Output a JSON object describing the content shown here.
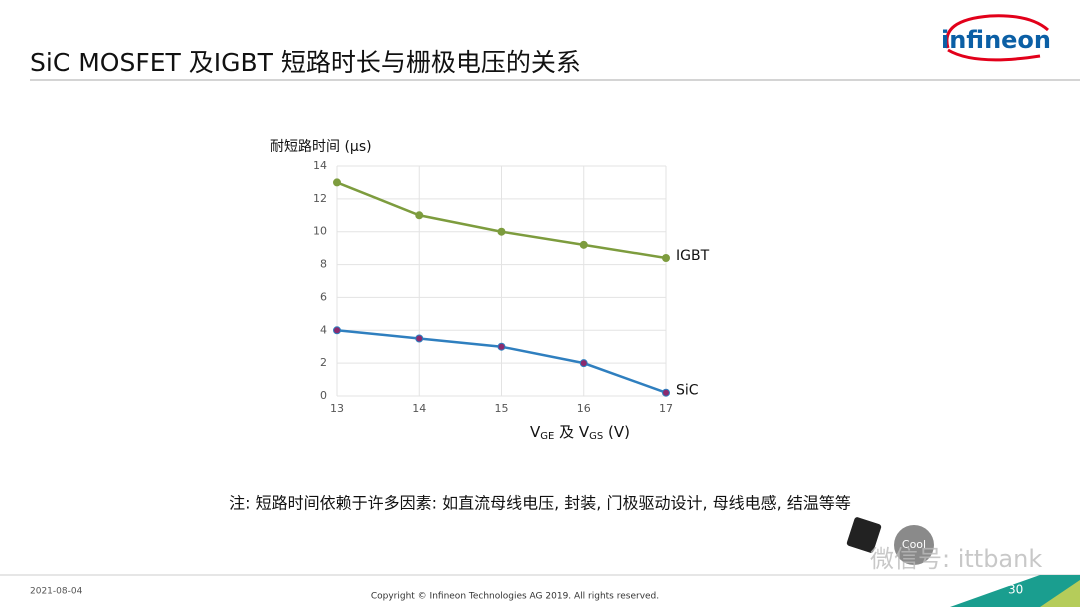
{
  "slide": {
    "title": "SiC MOSFET 及IGBT 短路时长与栅极电压的关系",
    "logo": "infineon",
    "note": "注: 短路时间依赖于许多因素: 如直流母线电压, 封装, 门极驱动设计, 母线电感, 结温等等",
    "date": "2021-08-04",
    "copyright": "Copyright © Infineon Technologies AG 2019. All rights reserved.",
    "page": "30",
    "badge": "Cool",
    "watermark": "微信号: ittbank"
  },
  "chart_data": {
    "type": "line",
    "ylabel": "耐短路时间 (µs)",
    "xlabel": [
      "V",
      "GE",
      " 及 V",
      "GS",
      "  (V)"
    ],
    "x": [
      13,
      14,
      15,
      16,
      17
    ],
    "xlim": [
      13,
      17
    ],
    "xticks": [
      13,
      14,
      15,
      16,
      17
    ],
    "ylim": [
      0,
      14
    ],
    "yticks": [
      0,
      2,
      4,
      6,
      8,
      10,
      12,
      14
    ],
    "grid": true,
    "series": [
      {
        "name": "IGBT",
        "color": "#7d9c3e",
        "marker_color": "#7d9c3e",
        "values": [
          13,
          11,
          10,
          9.2,
          8.4
        ]
      },
      {
        "name": "SiC",
        "color": "#2f7fbf",
        "marker_color": "#8a2a6e",
        "values": [
          4,
          3.5,
          3,
          2,
          0.2
        ]
      }
    ]
  }
}
